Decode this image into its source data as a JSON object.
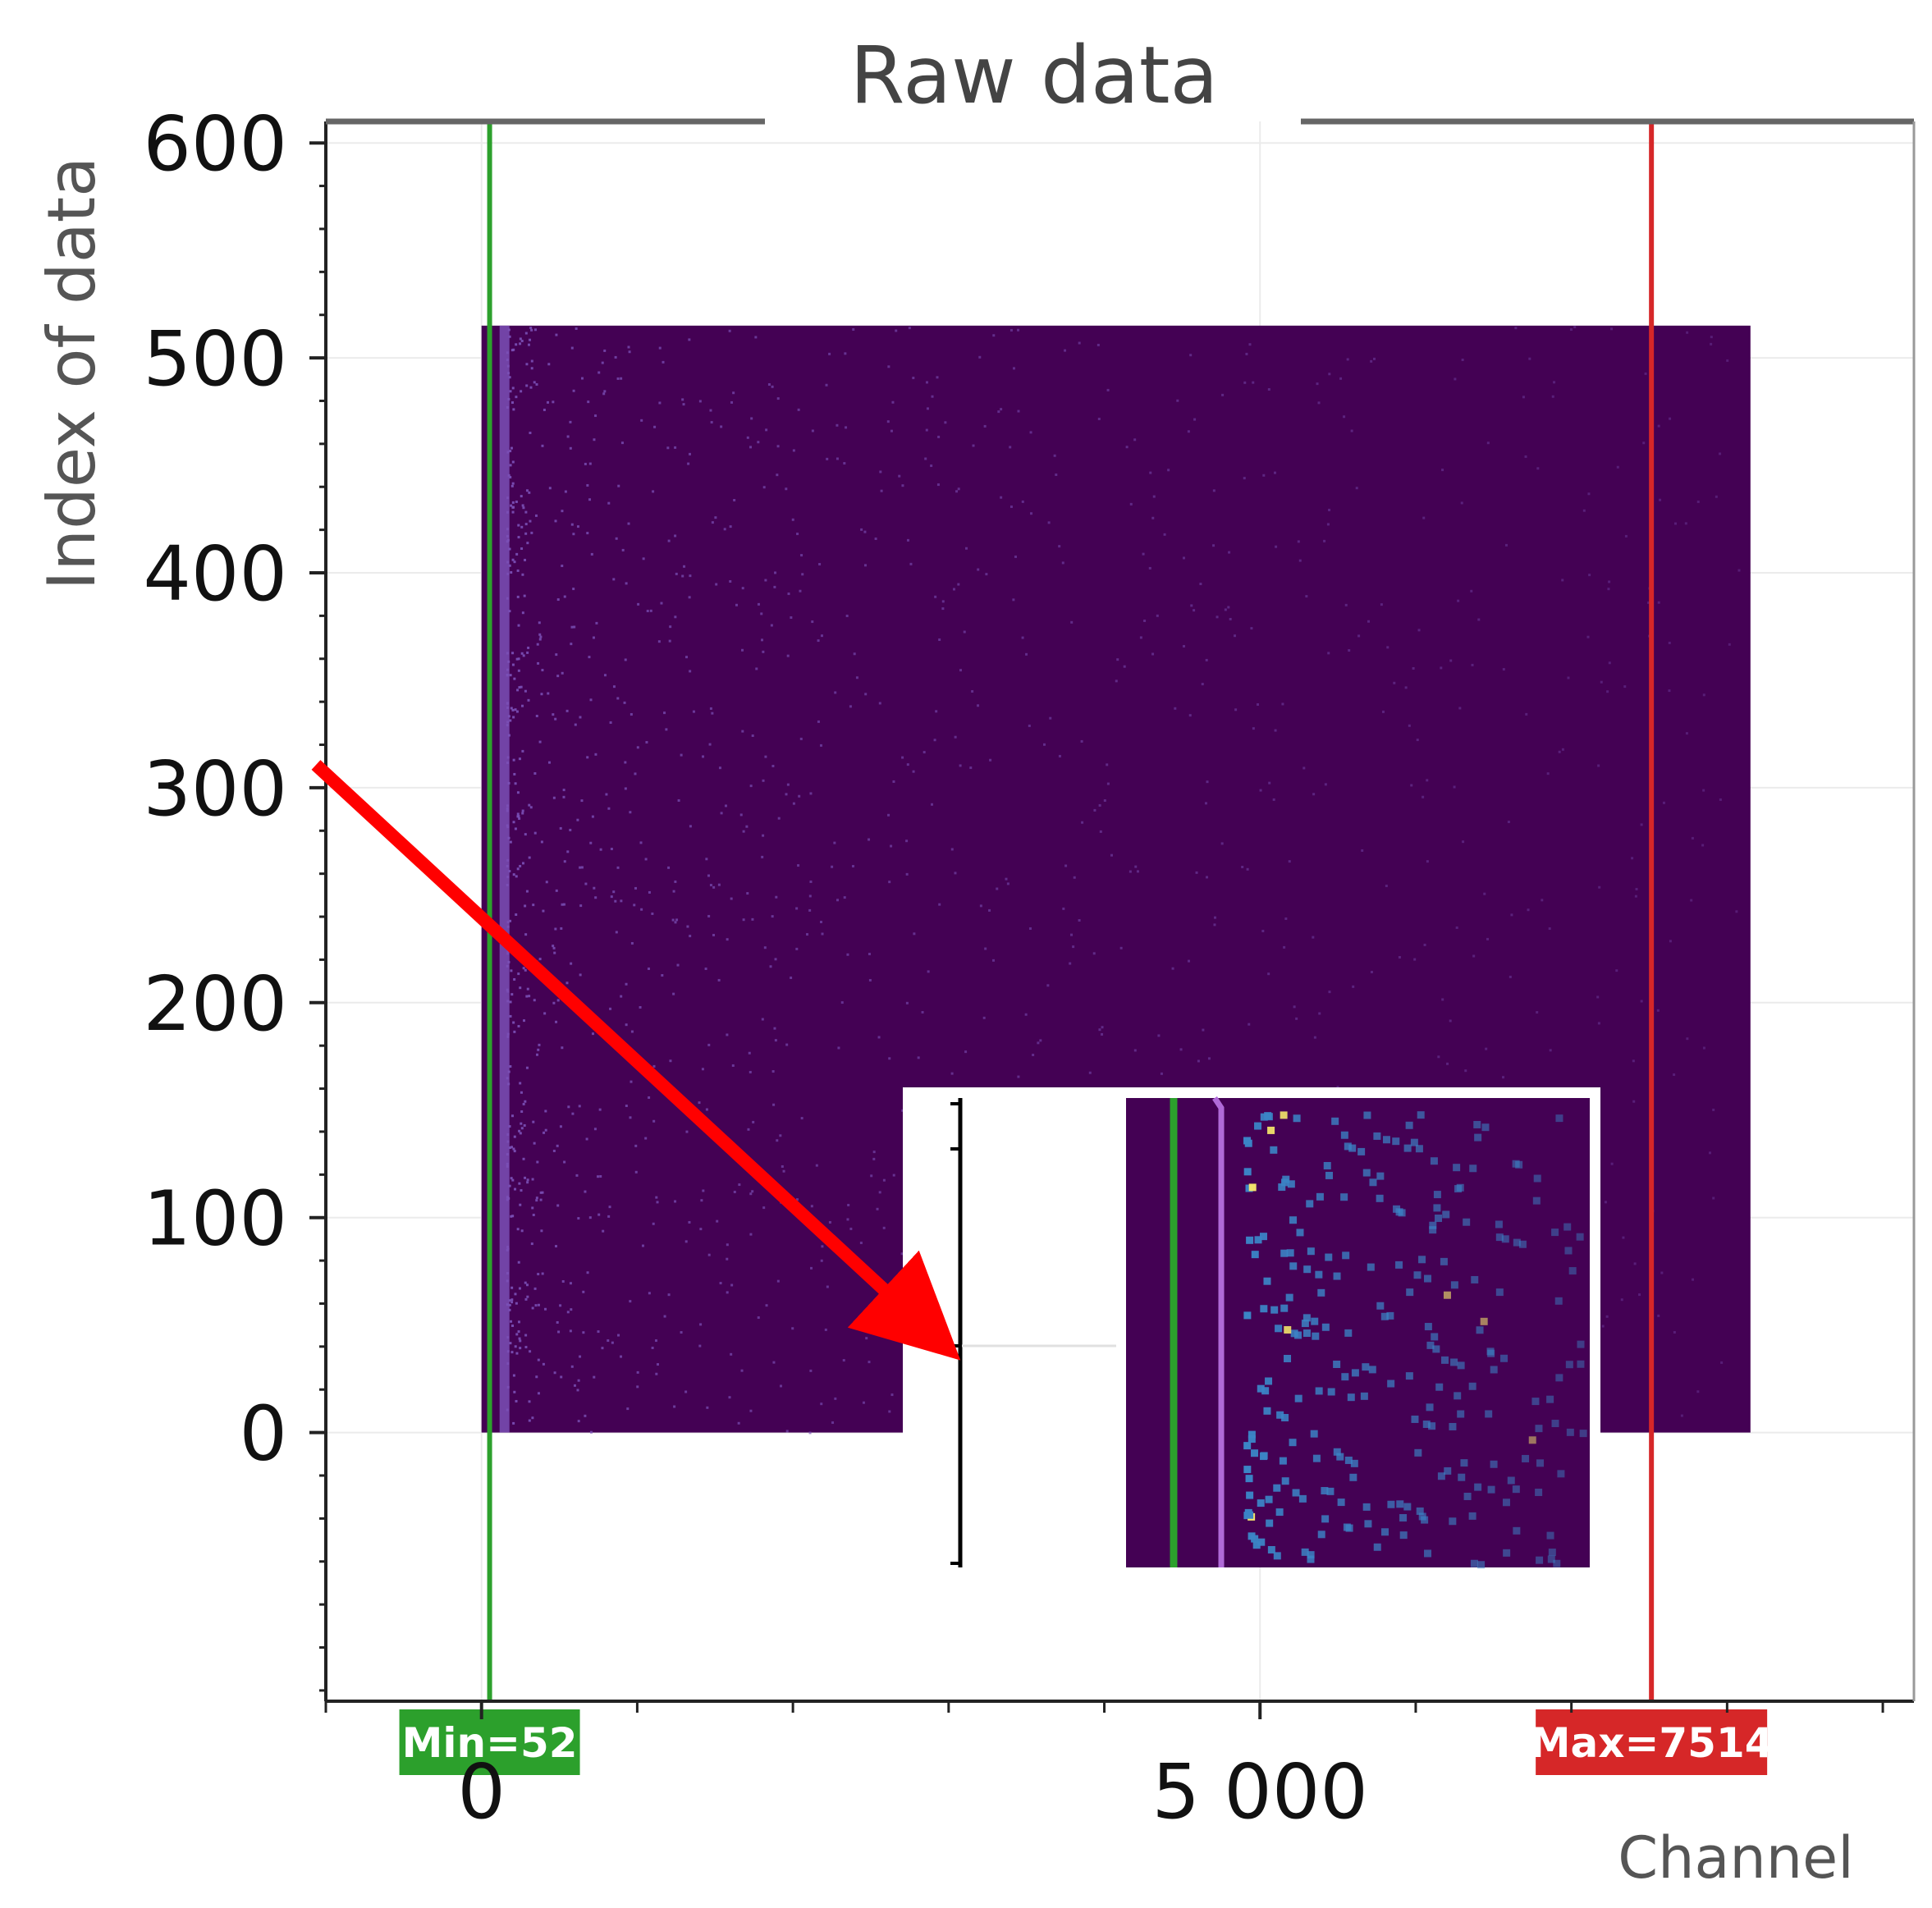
{
  "chart_data": {
    "type": "heatmap",
    "title": "Raw data",
    "xlabel": "Channel",
    "ylabel": "Index of data",
    "xlim": [
      -1000,
      9200
    ],
    "ylim": [
      -125,
      610
    ],
    "x_ticks": [
      0,
      5000
    ],
    "x_tick_labels": [
      "0",
      "5 000"
    ],
    "y_ticks": [
      0,
      100,
      200,
      300,
      400,
      500,
      600
    ],
    "y_tick_labels": [
      "0",
      "100",
      "200",
      "300",
      "400",
      "500",
      "600"
    ],
    "grid": true,
    "image_extent": {
      "x": [
        0,
        8150
      ],
      "y": [
        0,
        515
      ]
    },
    "markers": [
      {
        "name": "min",
        "label": "Min=52",
        "value": 52,
        "color": "#2ca02c"
      },
      {
        "name": "max",
        "label": "Max=7514",
        "value": 7514,
        "color": "#d62728"
      }
    ],
    "colormap": "viridis",
    "colors": {
      "background": "#440154",
      "low": "#7a4fb5",
      "mid": "#3b84c6",
      "high": "#f6e86b",
      "arrow": "#ff0000"
    },
    "inset": {
      "description_visible": false
    }
  }
}
